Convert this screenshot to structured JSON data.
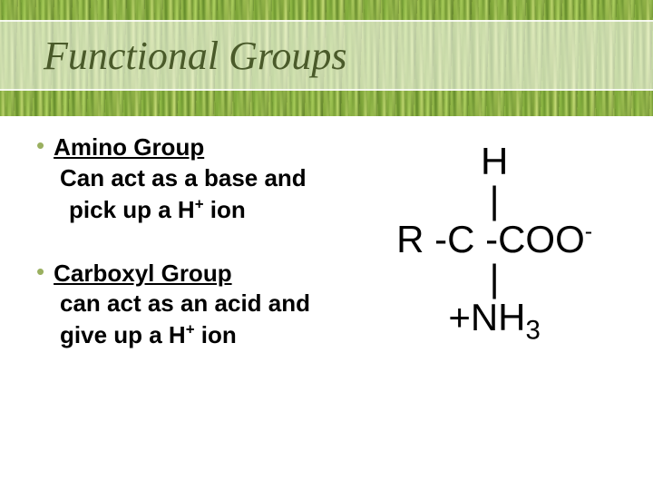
{
  "title": "Functional Groups",
  "colors": {
    "title_text": "#4a5a2a",
    "bullet": "#9ab060",
    "body_text": "#000000",
    "content_bg": "#ffffff",
    "title_bar_bg": "rgba(255,255,255,0.55)"
  },
  "typography": {
    "title_font": "Times New Roman, italic",
    "title_size_pt": 33,
    "body_font": "Comic Sans MS",
    "body_size_pt": 20,
    "chem_size_pt": 32
  },
  "groups": [
    {
      "name": "Amino Group",
      "desc_line1": "Can act as a base and",
      "desc_line2_pre": "pick up a H",
      "desc_line2_sup": "+",
      "desc_line2_post": " ion"
    },
    {
      "name": "Carboxyl Group",
      "desc_line1": "can act as an acid and",
      "desc_line2_pre": "give up a H",
      "desc_line2_sup": "+",
      "desc_line2_post": " ion"
    }
  ],
  "chemistry": {
    "line1": "H",
    "line2": "|",
    "line3_pre": "R -C -COO",
    "line3_sup": "-",
    "line4": "|",
    "line5_pre": "+NH",
    "line5_sub": "3"
  }
}
